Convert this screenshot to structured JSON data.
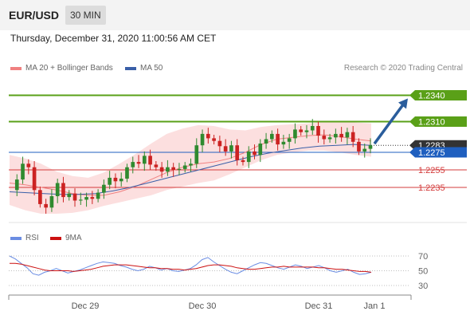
{
  "header": {
    "symbol": "EUR/USD",
    "timeframe": "30 MIN"
  },
  "datetime": "Thursday, December 31, 2020 11:00:56 AM CET",
  "legend": {
    "ma20": {
      "label": "MA 20 + Bollinger Bands",
      "color": "#f08080"
    },
    "ma50": {
      "label": "MA 50",
      "color": "#3a5fa8"
    }
  },
  "credit": "Research © 2020 Trading Central",
  "rsi_legend": {
    "rsi": {
      "label": "RSI",
      "color": "#6b8de3"
    },
    "ma9": {
      "label": "9MA",
      "color": "#cc1111"
    }
  },
  "chart_data": [
    {
      "type": "candlestick",
      "title": "EUR/USD",
      "ylim": [
        1.2205,
        1.2355
      ],
      "levels": [
        {
          "label": "1.2340",
          "value": 1.234,
          "color": "#5aa018",
          "kind": "resistance"
        },
        {
          "label": "1.2310",
          "value": 1.231,
          "color": "#5aa018",
          "kind": "resistance"
        },
        {
          "label": "1.2283",
          "value": 1.2283,
          "color": "#333333",
          "kind": "last-price"
        },
        {
          "label": "1.2275",
          "value": 1.2275,
          "color": "#1f5fbf",
          "kind": "pivot"
        },
        {
          "label": "1.2255",
          "value": 1.2255,
          "color": "#d33b3b",
          "kind": "support"
        },
        {
          "label": "1.2235",
          "value": 1.2235,
          "color": "#d33b3b",
          "kind": "support"
        }
      ],
      "x_ticks": [
        "Dec 29",
        "Dec 30",
        "Dec 31",
        "Jan 1"
      ],
      "close_path": [
        1.2232,
        1.2244,
        1.2262,
        1.2258,
        1.2232,
        1.2216,
        1.2212,
        1.2225,
        1.224,
        1.2224,
        1.2228,
        1.222,
        1.2221,
        1.2224,
        1.2222,
        1.2229,
        1.2238,
        1.2246,
        1.2242,
        1.2245,
        1.2258,
        1.2264,
        1.2262,
        1.2271,
        1.2261,
        1.2258,
        1.2253,
        1.2258,
        1.2255,
        1.2256,
        1.226,
        1.2262,
        1.2283,
        1.2296,
        1.2291,
        1.2288,
        1.2282,
        1.2276,
        1.2283,
        1.2266,
        1.2264,
        1.2276,
        1.2272,
        1.2285,
        1.229,
        1.2296,
        1.2284,
        1.2287,
        1.2291,
        1.2301,
        1.2298,
        1.23,
        1.2305,
        1.2294,
        1.229,
        1.2292,
        1.2296,
        1.2292,
        1.2298,
        1.2287,
        1.2276,
        1.2279,
        1.2283
      ],
      "ma20": [
        1.224,
        1.2238,
        1.2235,
        1.2232,
        1.2228,
        1.2226,
        1.2226,
        1.223,
        1.2236,
        1.2244,
        1.2252,
        1.2258,
        1.2262,
        1.2264,
        1.2268,
        1.2275,
        1.2284,
        1.229,
        1.2292,
        1.2294,
        1.2295,
        1.2293,
        1.229,
        1.2288
      ],
      "bollinger_upper": [
        1.2272,
        1.2268,
        1.2262,
        1.2253,
        1.2248,
        1.2246,
        1.2252,
        1.2262,
        1.2273,
        1.2285,
        1.2296,
        1.2302,
        1.2306,
        1.2305,
        1.2301,
        1.23,
        1.2304,
        1.2306,
        1.2307,
        1.2308,
        1.231,
        1.231,
        1.2309,
        1.2308
      ],
      "bollinger_lower": [
        1.2215,
        1.2209,
        1.2205,
        1.2205,
        1.2206,
        1.2209,
        1.2214,
        1.2218,
        1.2222,
        1.2226,
        1.2232,
        1.2236,
        1.224,
        1.2243,
        1.225,
        1.2258,
        1.2266,
        1.2272,
        1.2275,
        1.2277,
        1.2277,
        1.2275,
        1.2272,
        1.227
      ],
      "ma50": [
        1.223,
        1.2229,
        1.2228,
        1.2227,
        1.2227,
        1.2228,
        1.2231,
        1.2235,
        1.224,
        1.2245,
        1.225,
        1.2255,
        1.226,
        1.2265,
        1.227,
        1.2274,
        1.2277,
        1.228,
        1.2282,
        1.2283,
        1.2284,
        1.2283
      ],
      "forecast": {
        "from": 1.2283,
        "to": 1.234,
        "direction": "up"
      }
    },
    {
      "type": "line",
      "title": "RSI",
      "ylim": [
        30,
        70
      ],
      "y_ticks": [
        "70",
        "50",
        "30"
      ],
      "series": [
        {
          "name": "RSI",
          "values": [
            70,
            66,
            60,
            54,
            46,
            44,
            48,
            50,
            53,
            50,
            47,
            49,
            51,
            54,
            57,
            60,
            62,
            61,
            60,
            57,
            55,
            52,
            50,
            52,
            56,
            54,
            51,
            53,
            50,
            49,
            51,
            53,
            58,
            65,
            68,
            62,
            57,
            52,
            48,
            46,
            50,
            54,
            58,
            61,
            60,
            57,
            54,
            52,
            55,
            58,
            56,
            53,
            55,
            57,
            54,
            50,
            48,
            50,
            52,
            48,
            45,
            46,
            48
          ]
        },
        {
          "name": "9MA",
          "values": [
            60,
            60,
            59,
            57,
            55,
            53,
            51,
            50,
            50,
            50,
            50,
            49,
            50,
            51,
            52,
            54,
            56,
            57,
            58,
            58,
            58,
            57,
            56,
            55,
            54,
            54,
            53,
            53,
            52,
            52,
            51,
            52,
            53,
            55,
            57,
            58,
            58,
            57,
            56,
            54,
            53,
            52,
            52,
            53,
            54,
            55,
            55,
            56,
            55,
            55,
            55,
            55,
            55,
            54,
            54,
            53,
            52,
            52,
            51,
            50,
            49,
            49,
            48
          ]
        }
      ]
    }
  ]
}
